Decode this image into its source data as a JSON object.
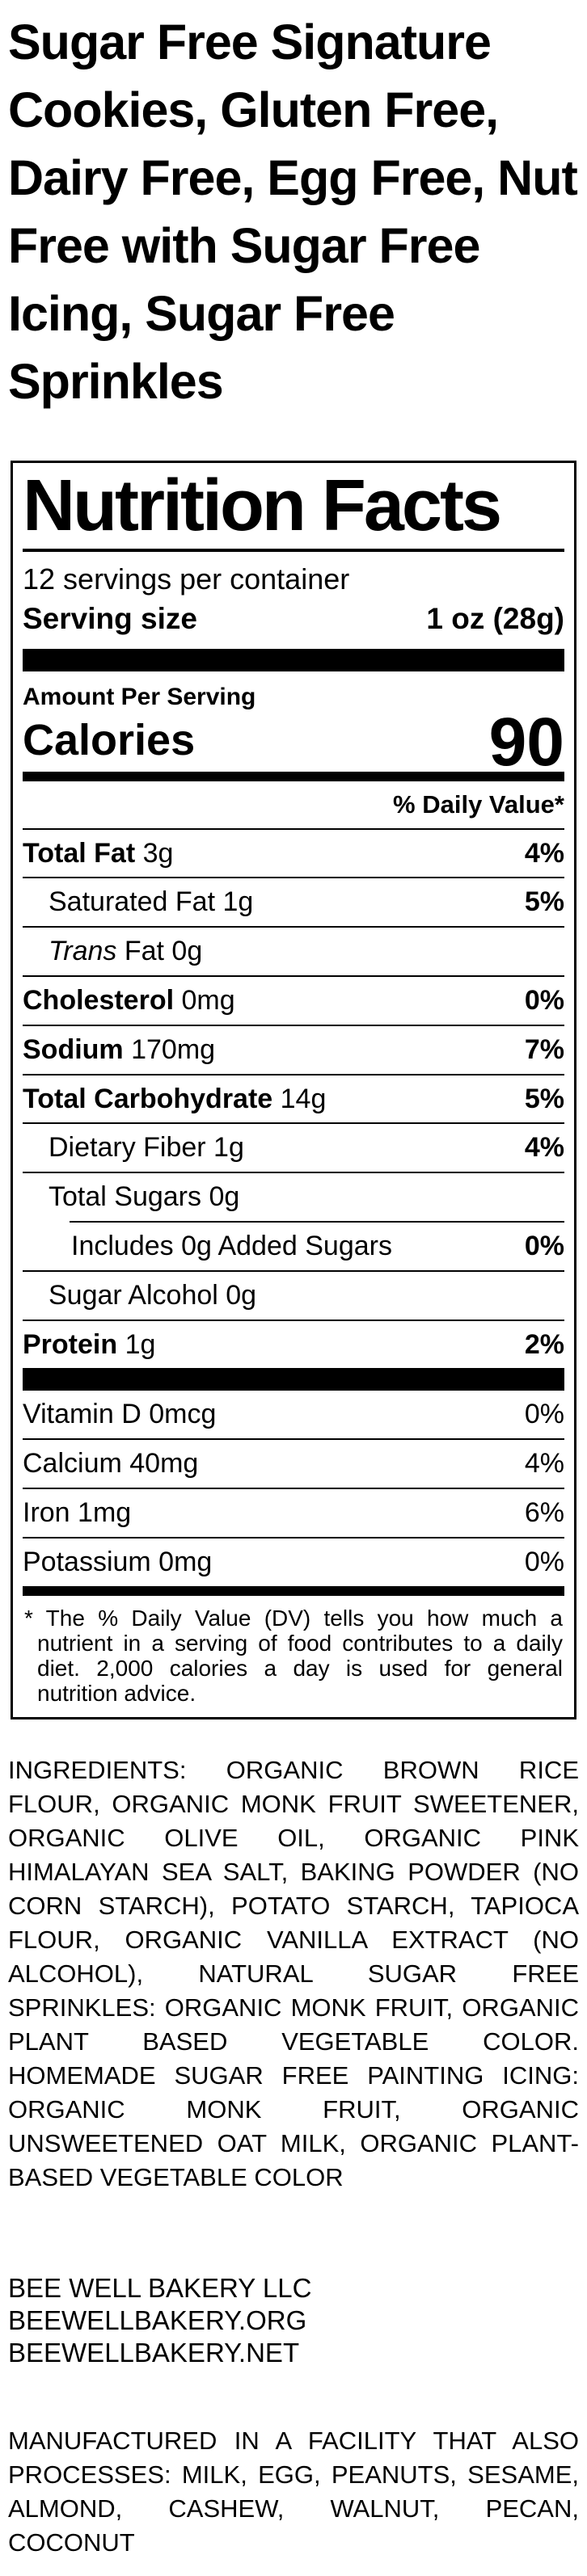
{
  "product": {
    "title": "Sugar Free Signature Cookies, Gluten Free, Dairy Free, Egg Free, Nut Free with Sugar Free Icing, Sugar Free Sprinkles"
  },
  "nutrition": {
    "heading": "Nutrition Facts",
    "servings_per_container": "12 servings per container",
    "serving_size_label": "Serving size",
    "serving_size_value": "1 oz (28g)",
    "amount_per_serving_label": "Amount Per Serving",
    "calories_label": "Calories",
    "calories_value": "90",
    "daily_value_header": "% Daily Value*",
    "rows": [
      {
        "label": "Total Fat",
        "value": "3g",
        "dv": "4%",
        "bold": true,
        "indent": 0
      },
      {
        "label": "Saturated Fat",
        "value": "1g",
        "dv": "5%",
        "bold": false,
        "indent": 1
      },
      {
        "label_italic": "Trans",
        "label": " Fat",
        "value": "0g",
        "dv": "",
        "bold": false,
        "indent": 1
      },
      {
        "label": "Cholesterol",
        "value": "0mg",
        "dv": "0%",
        "bold": true,
        "indent": 0
      },
      {
        "label": "Sodium",
        "value": "170mg",
        "dv": "7%",
        "bold": true,
        "indent": 0
      },
      {
        "label": "Total Carbohydrate",
        "value": "14g",
        "dv": "5%",
        "bold": true,
        "indent": 0
      },
      {
        "label": "Dietary Fiber",
        "value": "1g",
        "dv": "4%",
        "bold": false,
        "indent": 1
      },
      {
        "label": "Total Sugars",
        "value": "0g",
        "dv": "",
        "bold": false,
        "indent": 1
      },
      {
        "label": "Includes 0g Added Sugars",
        "value": "",
        "dv": "0%",
        "bold": false,
        "indent": 0,
        "rule_indent": true
      },
      {
        "label": "Sugar Alcohol",
        "value": "0g",
        "dv": "",
        "bold": false,
        "indent": 1
      },
      {
        "label": "Protein",
        "value": "1g",
        "dv": "2%",
        "bold": true,
        "indent": 0
      }
    ],
    "vitamins": [
      {
        "label": "Vitamin D",
        "value": "0mcg",
        "dv": "0%"
      },
      {
        "label": "Calcium",
        "value": "40mg",
        "dv": "4%"
      },
      {
        "label": "Iron",
        "value": "1mg",
        "dv": "6%"
      },
      {
        "label": "Potassium",
        "value": "0mg",
        "dv": "0%"
      }
    ],
    "footnote": "* The % Daily Value (DV) tells you how much a nutrient in a serving of food contributes to a daily diet. 2,000 calories a day is used for general nutrition advice."
  },
  "ingredients": {
    "text": "INGREDIENTS: ORGANIC BROWN RICE FLOUR, ORGANIC MONK FRUIT SWEETENER, ORGANIC OLIVE OIL, ORGANIC PINK HIMALAYAN SEA SALT, BAKING POWDER (NO CORN STARCH), POTATO STARCH, TAPIOCA FLOUR, ORGANIC VANILLA EXTRACT (NO ALCOHOL), NATURAL SUGAR FREE SPRINKLES: ORGANIC MONK FRUIT, ORGANIC PLANT BASED VEGETABLE COLOR. HOMEMADE SUGAR FREE PAINTING ICING: ORGANIC MONK FRUIT, ORGANIC UNSWEETENED OAT MILK, ORGANIC PLANT-BASED VEGETABLE COLOR"
  },
  "company": {
    "lines": [
      "BEE WELL BAKERY LLC",
      "BEEWELLBAKERY.ORG",
      "BEEWELLBAKERY.NET"
    ]
  },
  "allergen": {
    "text": "MANUFACTURED IN A FACILITY THAT ALSO PROCESSES: MILK, EGG, PEANUTS, SESAME, ALMOND, CASHEW, WALNUT, PECAN, COCONUT"
  },
  "colors": {
    "text": "#000000",
    "background": "#ffffff"
  }
}
